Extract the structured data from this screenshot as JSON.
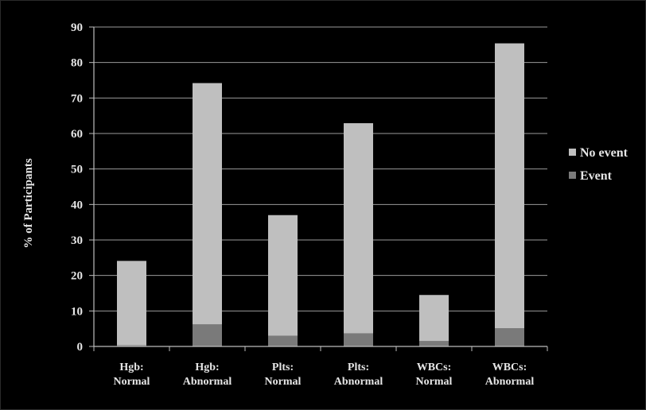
{
  "chart_data": {
    "type": "bar",
    "stacked": true,
    "ylabel": "% of Participants",
    "ylim": [
      0,
      90
    ],
    "ytick_step": 10,
    "yticks": [
      "0",
      "10",
      "20",
      "30",
      "40",
      "50",
      "60",
      "70",
      "80",
      "90"
    ],
    "grid": true,
    "legend_position": "right",
    "categories": [
      [
        "Hgb:",
        "Normal"
      ],
      [
        "Hgb:",
        "Abnormal"
      ],
      [
        "Plts:",
        "Normal"
      ],
      [
        "Plts:",
        "Abnormal"
      ],
      [
        "WBCs:",
        "Normal"
      ],
      [
        "WBCs:",
        "Abnormal"
      ]
    ],
    "series": [
      {
        "name": "Event",
        "color": "#7a7a7a",
        "values": [
          0.3,
          6.2,
          3.0,
          3.7,
          1.5,
          5.1
        ]
      },
      {
        "name": "No event",
        "color": "#bfbfbf",
        "values": [
          23.8,
          68.0,
          34.0,
          59.2,
          13.0,
          80.3
        ]
      }
    ],
    "legend_order": [
      "No event",
      "Event"
    ]
  }
}
